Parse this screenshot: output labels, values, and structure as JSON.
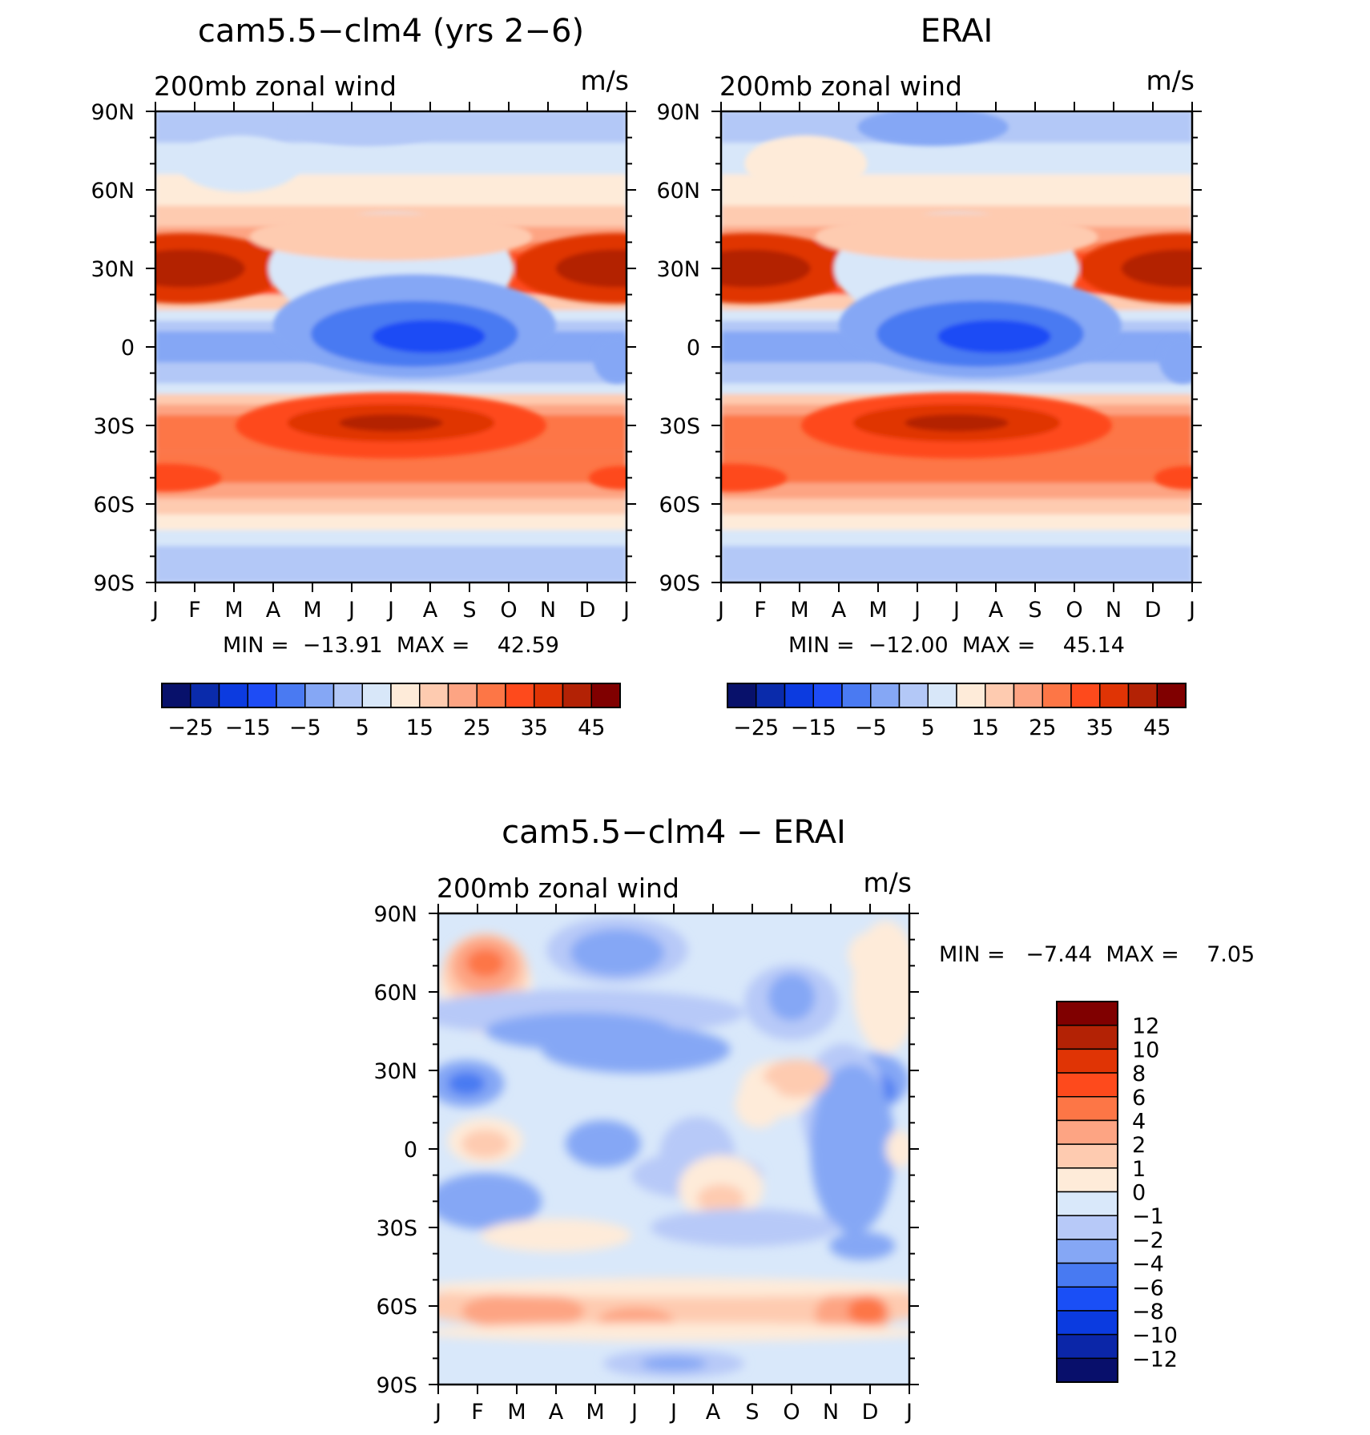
{
  "colors": {
    "diverging15": [
      "#08116b",
      "#0a2bab",
      "#0c3be0",
      "#1e4cf5",
      "#4a7af2",
      "#85a7f5",
      "#b3c8f7",
      "#d8e7f9",
      "#feebd9",
      "#fecbb0",
      "#fda483",
      "#fd7646",
      "#fe4a1c",
      "#e03405",
      "#b32205",
      "#800000"
    ],
    "diverging_diff": [
      "#080f6b",
      "#0b26a8",
      "#0b3be0",
      "#1a4ff6",
      "#487af2",
      "#85a7f5",
      "#b7c9f8",
      "#d9e8fa",
      "#feebd9",
      "#fecbb0",
      "#fda483",
      "#fd7646",
      "#fe4a1c",
      "#e03405",
      "#b32205",
      "#800000"
    ]
  },
  "chart_data": [
    {
      "type": "heatmap",
      "panel": "top-left",
      "title": "cam5.5−clm4 (yrs 2−6)",
      "left_label": "200mb zonal wind",
      "right_label": "m/s",
      "x": [
        "J",
        "F",
        "M",
        "A",
        "M",
        "J",
        "J",
        "A",
        "S",
        "O",
        "N",
        "D",
        "J"
      ],
      "y": [
        "90N",
        "60N",
        "30N",
        "0",
        "30S",
        "60S",
        "90S"
      ],
      "minmax": "MIN =  −13.91  MAX =    42.59",
      "colorbar_labels": [
        "−25",
        "−15",
        "−5",
        "5",
        "15",
        "25",
        "35",
        "45"
      ],
      "colorbar_levels": [
        -30,
        -25,
        -20,
        -15,
        -10,
        -5,
        0,
        5,
        10,
        15,
        20,
        25,
        30,
        35,
        40,
        45
      ],
      "jet_maxima": {
        "nh_jet_max": 42.59,
        "sh_subtropical_jet_max": 38,
        "equatorial_min": -13.91
      },
      "profile_lat": [
        90,
        80,
        70,
        60,
        50,
        40,
        30,
        20,
        10,
        0,
        -10,
        -20,
        -30,
        -40,
        -50,
        -60,
        -70,
        -80,
        -90
      ],
      "profile_jan": [
        3,
        4,
        8,
        12,
        22,
        32,
        40,
        26,
        10,
        2,
        6,
        18,
        28,
        30,
        32,
        22,
        8,
        2,
        1
      ],
      "profile_jul": [
        3,
        2,
        4,
        6,
        10,
        16,
        18,
        2,
        -8,
        -13,
        -4,
        20,
        40,
        32,
        28,
        24,
        10,
        3,
        1
      ]
    },
    {
      "type": "heatmap",
      "panel": "top-right",
      "title": "ERAI",
      "left_label": "200mb zonal wind",
      "right_label": "m/s",
      "x": [
        "J",
        "F",
        "M",
        "A",
        "M",
        "J",
        "J",
        "A",
        "S",
        "O",
        "N",
        "D",
        "J"
      ],
      "y": [
        "90N",
        "60N",
        "30N",
        "0",
        "30S",
        "60S",
        "90S"
      ],
      "minmax": "MIN =  −12.00  MAX =    45.14",
      "colorbar_labels": [
        "−25",
        "−15",
        "−5",
        "5",
        "15",
        "25",
        "35",
        "45"
      ],
      "colorbar_levels": [
        -30,
        -25,
        -20,
        -15,
        -10,
        -5,
        0,
        5,
        10,
        15,
        20,
        25,
        30,
        35,
        40,
        45
      ],
      "jet_maxima": {
        "nh_jet_max": 45.14,
        "sh_subtropical_jet_max": 38,
        "equatorial_min": -12.0
      },
      "profile_lat": [
        90,
        80,
        70,
        60,
        50,
        40,
        30,
        20,
        10,
        0,
        -10,
        -20,
        -30,
        -40,
        -50,
        -60,
        -70,
        -80,
        -90
      ],
      "profile_jan": [
        2,
        3,
        6,
        12,
        22,
        32,
        42,
        26,
        8,
        0,
        4,
        18,
        28,
        30,
        30,
        20,
        6,
        1,
        0
      ],
      "profile_jul": [
        2,
        2,
        4,
        6,
        10,
        16,
        18,
        2,
        -8,
        -12,
        -4,
        20,
        40,
        32,
        26,
        22,
        8,
        2,
        0
      ]
    },
    {
      "type": "heatmap",
      "panel": "bottom",
      "title": "cam5.5−clm4 − ERAI",
      "left_label": "200mb zonal wind",
      "right_label": "m/s",
      "x": [
        "J",
        "F",
        "M",
        "A",
        "M",
        "J",
        "J",
        "A",
        "S",
        "O",
        "N",
        "D",
        "J"
      ],
      "y": [
        "90N",
        "60N",
        "30N",
        "0",
        "30S",
        "60S",
        "90S"
      ],
      "minmax": "MIN =   −7.44  MAX =    7.05",
      "colorbar_labels": [
        "12",
        "10",
        "8",
        "6",
        "4",
        "2",
        "1",
        "0",
        "−1",
        "−2",
        "−4",
        "−6",
        "−8",
        "−10",
        "−12"
      ],
      "colorbar_levels": [
        -12,
        -10,
        -8,
        -6,
        -4,
        -2,
        -1,
        0,
        1,
        2,
        4,
        6,
        8,
        10,
        12
      ],
      "min": -7.44,
      "max": 7.05
    }
  ]
}
